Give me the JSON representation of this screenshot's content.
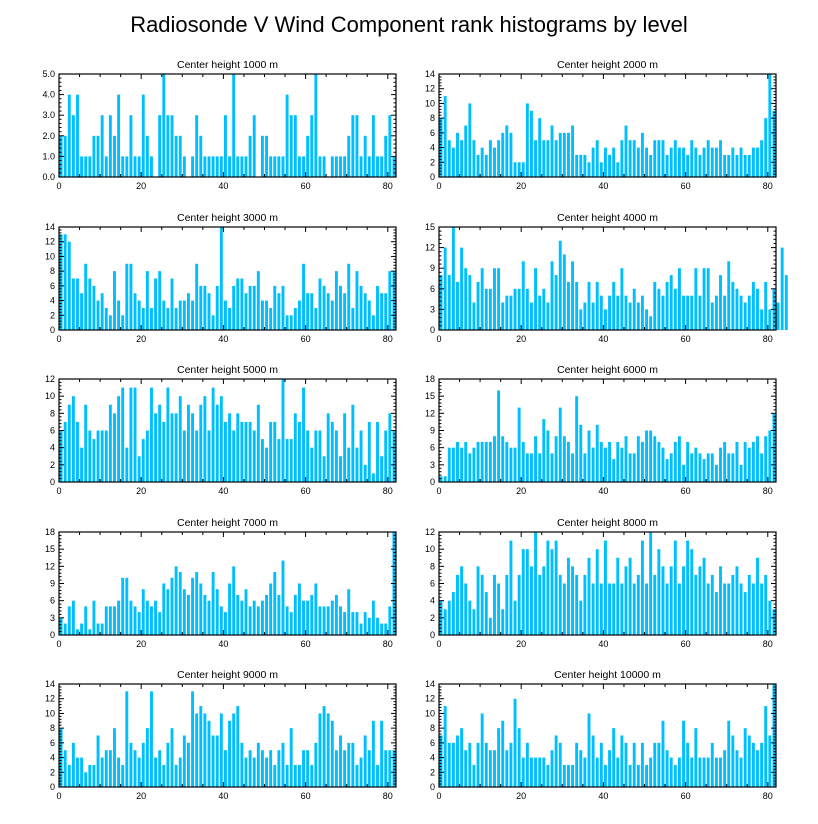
{
  "figure_title": "Radiosonde V Wind Component rank histograms by level",
  "colors": {
    "bar": "#00BFFF",
    "bar_edge": "#ffffff",
    "frame": "#000000"
  },
  "chart_data": [
    {
      "type": "bar",
      "title": "Center height 1000 m",
      "xlim": [
        0,
        82
      ],
      "xticks": [
        0,
        20,
        40,
        60,
        80
      ],
      "ylim": [
        0,
        5
      ],
      "yticks": [
        0,
        1,
        2,
        3,
        4,
        5
      ],
      "ytick_labels": [
        "0.0",
        "1.0",
        "2.0",
        "3.0",
        "4.0",
        "5.0"
      ],
      "values": [
        2,
        2,
        4,
        3,
        4,
        1,
        1,
        1,
        2,
        2,
        3,
        1,
        3,
        2,
        4,
        1,
        1,
        3,
        1,
        1,
        4,
        2,
        1,
        0,
        3,
        5,
        3,
        3,
        2,
        2,
        1,
        0,
        1,
        3,
        2,
        1,
        1,
        1,
        1,
        1,
        3,
        1,
        5,
        1,
        1,
        1,
        2,
        3,
        0,
        2,
        2,
        1,
        1,
        1,
        1,
        4,
        3,
        3,
        1,
        1,
        2,
        3,
        5,
        1,
        1,
        0,
        1,
        1,
        1,
        1,
        2,
        3,
        3,
        1,
        2,
        1,
        3,
        1,
        1,
        2,
        3,
        1
      ]
    },
    {
      "type": "bar",
      "title": "Center height 2000 m",
      "xlim": [
        0,
        82
      ],
      "xticks": [
        0,
        20,
        40,
        60,
        80
      ],
      "ylim": [
        0,
        14
      ],
      "yticks": [
        0,
        2,
        4,
        6,
        8,
        10,
        12,
        14
      ],
      "ytick_labels": [
        "0",
        "2",
        "4",
        "6",
        "8",
        "10",
        "12",
        "14"
      ],
      "values": [
        8,
        11,
        5,
        4,
        6,
        5,
        7,
        10,
        5,
        3,
        4,
        3,
        5,
        4,
        5,
        6,
        7,
        6,
        2,
        2,
        2,
        10,
        9,
        5,
        8,
        5,
        5,
        7,
        5,
        6,
        6,
        6,
        7,
        3,
        3,
        3,
        2,
        4,
        5,
        2,
        4,
        3,
        4,
        2,
        5,
        7,
        5,
        5,
        4,
        6,
        4,
        3,
        5,
        5,
        5,
        3,
        4,
        5,
        4,
        4,
        3,
        5,
        4,
        3,
        4,
        5,
        4,
        4,
        5,
        3,
        3,
        4,
        3,
        4,
        3,
        3,
        4,
        4,
        5,
        8,
        14,
        9
      ]
    },
    {
      "type": "bar",
      "title": "Center height 3000 m",
      "xlim": [
        0,
        82
      ],
      "xticks": [
        0,
        20,
        40,
        60,
        80
      ],
      "ylim": [
        0,
        14
      ],
      "yticks": [
        0,
        2,
        4,
        6,
        8,
        10,
        12,
        14
      ],
      "ytick_labels": [
        "0",
        "2",
        "4",
        "6",
        "8",
        "10",
        "12",
        "14"
      ],
      "values": [
        13,
        13,
        12,
        7,
        7,
        5,
        9,
        7,
        6,
        4,
        5,
        3,
        2,
        8,
        4,
        2,
        9,
        9,
        5,
        4,
        3,
        8,
        3,
        7,
        8,
        4,
        3,
        7,
        3,
        4,
        4,
        5,
        4,
        9,
        6,
        6,
        5,
        2,
        6,
        14,
        4,
        3,
        6,
        7,
        7,
        5,
        6,
        6,
        8,
        4,
        4,
        3,
        6,
        5,
        6,
        2,
        2,
        3,
        4,
        9,
        5,
        5,
        3,
        7,
        6,
        5,
        4,
        8,
        6,
        5,
        9,
        3,
        8,
        6,
        5,
        4,
        2,
        6,
        5,
        5,
        8,
        8
      ]
    },
    {
      "type": "bar",
      "title": "Center height 4000 m",
      "xlim": [
        0,
        82
      ],
      "xticks": [
        0,
        20,
        40,
        60,
        80
      ],
      "ylim": [
        0,
        15
      ],
      "yticks": [
        0,
        3,
        6,
        9,
        12,
        15
      ],
      "ytick_labels": [
        "0",
        "3",
        "6",
        "9",
        "12",
        "15"
      ],
      "values": [
        8,
        12,
        8,
        15,
        7,
        12,
        9,
        8,
        4,
        7,
        9,
        6,
        6,
        9,
        9,
        4,
        5,
        5,
        6,
        6,
        10,
        6,
        4,
        9,
        5,
        6,
        4,
        10,
        8,
        13,
        11,
        7,
        10,
        7,
        3,
        4,
        7,
        4,
        7,
        5,
        3,
        5,
        7,
        5,
        9,
        5,
        4,
        6,
        4,
        5,
        3,
        2,
        7,
        6,
        5,
        7,
        8,
        6,
        9,
        5,
        5,
        5,
        9,
        5,
        9,
        9,
        4,
        5,
        8,
        5,
        10,
        7,
        6,
        5,
        4,
        5,
        7,
        6,
        3,
        7,
        3,
        6,
        4,
        12,
        8
      ]
    },
    {
      "type": "bar",
      "title": "Center height 5000 m",
      "xlim": [
        0,
        82
      ],
      "xticks": [
        0,
        20,
        40,
        60,
        80
      ],
      "ylim": [
        0,
        12
      ],
      "yticks": [
        0,
        2,
        4,
        6,
        8,
        10,
        12
      ],
      "ytick_labels": [
        "0",
        "2",
        "4",
        "6",
        "8",
        "10",
        "12"
      ],
      "values": [
        6,
        7,
        9,
        10,
        7,
        4,
        9,
        6,
        5,
        6,
        6,
        6,
        9,
        8,
        10,
        11,
        4,
        11,
        11,
        3,
        5,
        6,
        11,
        8,
        9,
        7,
        11,
        8,
        8,
        10,
        6,
        9,
        8,
        6,
        9,
        10,
        6,
        11,
        9,
        10,
        7,
        8,
        6,
        8,
        7,
        7,
        7,
        6,
        9,
        5,
        4,
        7,
        7,
        5,
        12,
        5,
        5,
        8,
        7,
        11,
        6,
        4,
        6,
        6,
        3,
        8,
        7,
        6,
        3,
        8,
        4,
        9,
        4,
        6,
        2,
        7,
        1,
        7,
        3,
        6,
        8,
        6
      ]
    },
    {
      "type": "bar",
      "title": "Center height 6000 m",
      "xlim": [
        0,
        82
      ],
      "xticks": [
        0,
        20,
        40,
        60,
        80
      ],
      "ylim": [
        0,
        18
      ],
      "yticks": [
        0,
        3,
        6,
        9,
        12,
        15,
        18
      ],
      "ytick_labels": [
        "0",
        "3",
        "6",
        "9",
        "12",
        "15",
        "18"
      ],
      "values": [
        1,
        1,
        6,
        6,
        7,
        6,
        7,
        5,
        6,
        7,
        7,
        7,
        7,
        8,
        16,
        8,
        7,
        6,
        6,
        13,
        7,
        5,
        5,
        8,
        5,
        11,
        9,
        5,
        8,
        13,
        8,
        7,
        5,
        15,
        10,
        5,
        9,
        6,
        10,
        7,
        6,
        7,
        4,
        7,
        6,
        8,
        5,
        5,
        8,
        7,
        9,
        9,
        8,
        7,
        6,
        4,
        5,
        7,
        8,
        3,
        7,
        5,
        6,
        5,
        4,
        5,
        5,
        3,
        6,
        7,
        5,
        5,
        7,
        3,
        7,
        6,
        7,
        8,
        5,
        8,
        9,
        12
      ]
    },
    {
      "type": "bar",
      "title": "Center height 7000 m",
      "xlim": [
        0,
        82
      ],
      "xticks": [
        0,
        20,
        40,
        60,
        80
      ],
      "ylim": [
        0,
        18
      ],
      "yticks": [
        0,
        3,
        6,
        9,
        12,
        15,
        18
      ],
      "ytick_labels": [
        "0",
        "3",
        "6",
        "9",
        "12",
        "15",
        "18"
      ],
      "values": [
        3,
        2,
        5,
        6,
        1,
        2,
        5,
        1,
        6,
        2,
        2,
        5,
        5,
        5,
        6,
        10,
        10,
        6,
        5,
        4,
        8,
        6,
        5,
        6,
        4,
        9,
        8,
        10,
        12,
        11,
        8,
        7,
        10,
        11,
        9,
        7,
        6,
        11,
        8,
        5,
        4,
        9,
        12,
        7,
        6,
        8,
        5,
        6,
        5,
        6,
        7,
        9,
        11,
        7,
        13,
        5,
        4,
        7,
        9,
        6,
        6,
        7,
        9,
        5,
        5,
        5,
        6,
        7,
        5,
        4,
        8,
        4,
        4,
        2,
        4,
        3,
        6,
        3,
        2,
        2,
        5,
        18
      ]
    },
    {
      "type": "bar",
      "title": "Center height 8000 m",
      "xlim": [
        0,
        82
      ],
      "xticks": [
        0,
        20,
        40,
        60,
        80
      ],
      "ylim": [
        0,
        12
      ],
      "yticks": [
        0,
        2,
        4,
        6,
        8,
        10,
        12
      ],
      "ytick_labels": [
        "0",
        "2",
        "4",
        "6",
        "8",
        "10",
        "12"
      ],
      "values": [
        4,
        3,
        4,
        5,
        7,
        8,
        6,
        4,
        3,
        8,
        7,
        5,
        2,
        7,
        6,
        3,
        7,
        11,
        4,
        7,
        10,
        10,
        8,
        12,
        7,
        8,
        11,
        10,
        11,
        7,
        6,
        9,
        8,
        7,
        4,
        7,
        9,
        6,
        10,
        6,
        11,
        6,
        6,
        9,
        6,
        8,
        9,
        6,
        7,
        11,
        6,
        12,
        7,
        10,
        8,
        6,
        8,
        11,
        6,
        8,
        11,
        10,
        7,
        8,
        9,
        6,
        7,
        5,
        8,
        6,
        6,
        7,
        8,
        6,
        5,
        7,
        6,
        9,
        6,
        7,
        4,
        3
      ]
    },
    {
      "type": "bar",
      "title": "Center height 9000 m",
      "xlim": [
        0,
        82
      ],
      "xticks": [
        0,
        20,
        40,
        60,
        80
      ],
      "ylim": [
        0,
        14
      ],
      "yticks": [
        0,
        2,
        4,
        6,
        8,
        10,
        12,
        14
      ],
      "ytick_labels": [
        "0",
        "2",
        "4",
        "6",
        "8",
        "10",
        "12",
        "14"
      ],
      "values": [
        8,
        5,
        3,
        6,
        4,
        4,
        2,
        3,
        3,
        7,
        4,
        5,
        5,
        8,
        4,
        3,
        13,
        6,
        5,
        4,
        6,
        8,
        13,
        4,
        5,
        3,
        6,
        8,
        3,
        4,
        7,
        6,
        13,
        10,
        11,
        10,
        9,
        7,
        7,
        10,
        5,
        9,
        10,
        11,
        6,
        4,
        5,
        4,
        6,
        5,
        4,
        5,
        3,
        5,
        6,
        3,
        8,
        3,
        3,
        5,
        5,
        3,
        6,
        10,
        11,
        10,
        9,
        5,
        7,
        5,
        6,
        6,
        3,
        4,
        7,
        5,
        9,
        3,
        9,
        5,
        5,
        5
      ]
    },
    {
      "type": "bar",
      "title": "Center height 10000 m",
      "xlim": [
        0,
        82
      ],
      "xticks": [
        0,
        20,
        40,
        60,
        80
      ],
      "ylim": [
        0,
        14
      ],
      "yticks": [
        0,
        2,
        4,
        6,
        8,
        10,
        12,
        14
      ],
      "ytick_labels": [
        "0",
        "2",
        "4",
        "6",
        "8",
        "10",
        "12",
        "14"
      ],
      "values": [
        7,
        11,
        6,
        6,
        7,
        8,
        5,
        6,
        3,
        6,
        10,
        6,
        5,
        5,
        8,
        9,
        5,
        6,
        12,
        8,
        4,
        6,
        4,
        4,
        4,
        4,
        3,
        5,
        7,
        6,
        3,
        3,
        3,
        6,
        5,
        4,
        10,
        7,
        4,
        6,
        3,
        5,
        8,
        4,
        7,
        6,
        3,
        6,
        3,
        6,
        3,
        4,
        6,
        6,
        9,
        5,
        4,
        3,
        4,
        9,
        6,
        4,
        8,
        4,
        4,
        4,
        6,
        4,
        4,
        5,
        9,
        7,
        5,
        4,
        8,
        7,
        6,
        5,
        6,
        11,
        7,
        14
      ]
    }
  ]
}
